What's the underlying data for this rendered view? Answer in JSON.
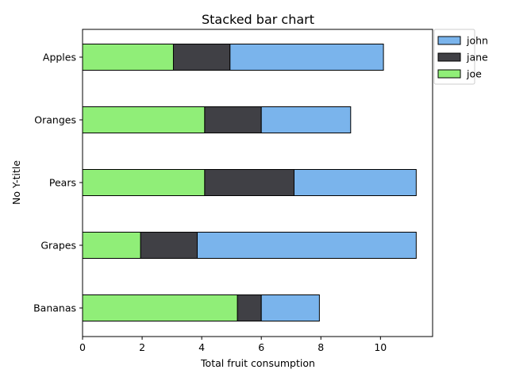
{
  "chart_data": {
    "type": "bar",
    "orientation": "horizontal",
    "stacked": true,
    "title": "Stacked bar chart",
    "xlabel": "Total fruit consumption",
    "ylabel": "No Y-title",
    "categories": [
      "Apples",
      "Oranges",
      "Pears",
      "Grapes",
      "Bananas"
    ],
    "series": [
      {
        "name": "joe",
        "color": "#90ee78",
        "values": [
          3.05,
          4.1,
          4.1,
          1.95,
          5.2
        ]
      },
      {
        "name": "jane",
        "color": "#404045",
        "values": [
          1.9,
          1.9,
          3.0,
          1.9,
          0.8
        ]
      },
      {
        "name": "john",
        "color": "#7ab4ec",
        "values": [
          5.15,
          3.0,
          4.1,
          7.35,
          1.95
        ]
      }
    ],
    "legend_order": [
      "john",
      "jane",
      "joe"
    ],
    "xlim": [
      0,
      11.75
    ],
    "xticks": [
      0,
      2,
      4,
      6,
      8,
      10
    ],
    "legend_position": "upper-right-outside",
    "grid": false
  }
}
